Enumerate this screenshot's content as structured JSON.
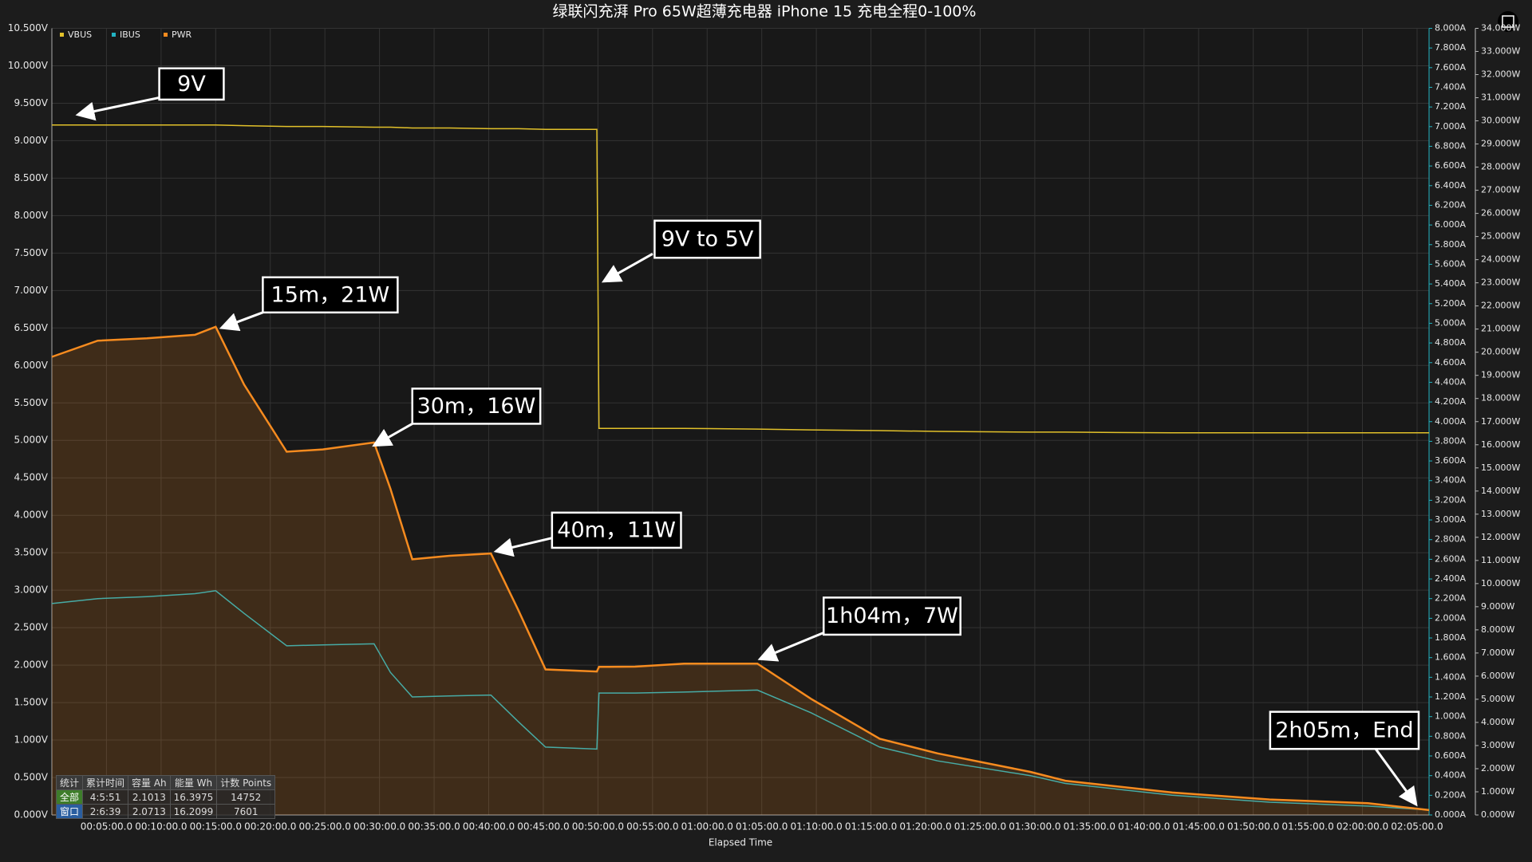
{
  "chart_data": {
    "type": "line",
    "title": "绿联闪充湃 Pro 65W超薄充电器 iPhone 15 充电全程0-100%",
    "x_label": "Elapsed Time",
    "x": [
      0,
      4.2,
      8.7,
      13.1,
      15.0,
      17.6,
      21.5,
      24.8,
      29.5,
      31.0,
      33.0,
      36.4,
      40.2,
      42.7,
      45.2,
      49.9,
      50.1,
      53.4,
      57.9,
      64.6,
      69.5,
      75.8,
      81.1,
      89.6,
      92.8,
      102.6,
      111.5,
      120.5,
      126.1
    ],
    "series": [
      {
        "name": "VBUS",
        "color": "#e2c12a",
        "axis": "y",
        "values": [
          9.21,
          9.21,
          9.21,
          9.21,
          9.21,
          9.2,
          9.19,
          9.19,
          9.18,
          9.18,
          9.17,
          9.17,
          9.16,
          9.16,
          9.15,
          9.15,
          5.16,
          5.16,
          5.16,
          5.15,
          5.14,
          5.13,
          5.12,
          5.11,
          5.11,
          5.1,
          5.1,
          5.1,
          5.1
        ]
      },
      {
        "name": "IBUS",
        "color": "#22b3c2",
        "axis": "y2",
        "values": [
          2.15,
          2.2,
          2.22,
          2.25,
          2.28,
          2.05,
          1.72,
          1.73,
          1.74,
          1.45,
          1.2,
          1.21,
          1.22,
          0.95,
          0.69,
          0.67,
          1.24,
          1.24,
          1.25,
          1.27,
          1.04,
          0.69,
          0.55,
          0.4,
          0.32,
          0.2,
          0.13,
          0.09,
          0.05
        ]
      },
      {
        "name": "PWR",
        "color": "#f68b1f",
        "axis": "y3",
        "values": [
          19.8,
          20.5,
          20.6,
          20.75,
          21.1,
          18.6,
          15.7,
          15.8,
          16.1,
          14.1,
          11.05,
          11.2,
          11.3,
          8.86,
          6.29,
          6.2,
          6.4,
          6.41,
          6.54,
          6.54,
          5.02,
          3.29,
          2.66,
          1.86,
          1.48,
          0.97,
          0.67,
          0.51,
          0.21
        ]
      }
    ],
    "xlim": [
      0,
      126.1
    ],
    "xticks": [
      {
        "value": 5,
        "label": "00:05:00.0"
      },
      {
        "value": 10,
        "label": "00:10:00.0"
      },
      {
        "value": 15,
        "label": "00:15:00.0"
      },
      {
        "value": 20,
        "label": "00:20:00.0"
      },
      {
        "value": 25,
        "label": "00:25:00.0"
      },
      {
        "value": 30,
        "label": "00:30:00.0"
      },
      {
        "value": 35,
        "label": "00:35:00.0"
      },
      {
        "value": 40,
        "label": "00:40:00.0"
      },
      {
        "value": 45,
        "label": "00:45:00.0"
      },
      {
        "value": 50,
        "label": "00:50:00.0"
      },
      {
        "value": 55,
        "label": "00:55:00.0"
      },
      {
        "value": 60,
        "label": "01:00:00.0"
      },
      {
        "value": 65,
        "label": "01:05:00.0"
      },
      {
        "value": 70,
        "label": "01:10:00.0"
      },
      {
        "value": 75,
        "label": "01:15:00.0"
      },
      {
        "value": 80,
        "label": "01:20:00.0"
      },
      {
        "value": 85,
        "label": "01:25:00.0"
      },
      {
        "value": 90,
        "label": "01:30:00.0"
      },
      {
        "value": 95,
        "label": "01:35:00.0"
      },
      {
        "value": 100,
        "label": "01:40:00.0"
      },
      {
        "value": 105,
        "label": "01:45:00.0"
      },
      {
        "value": 110,
        "label": "01:50:00.0"
      },
      {
        "value": 115,
        "label": "01:55:00.0"
      },
      {
        "value": 120,
        "label": "02:00:00.0"
      },
      {
        "value": 125,
        "label": "02:05:00.0"
      }
    ],
    "ylim": [
      0,
      10.5
    ],
    "yticks": [
      {
        "value": 0,
        "label": "0.000V"
      },
      {
        "value": 0.5,
        "label": "0.500V"
      },
      {
        "value": 1,
        "label": "1.000V"
      },
      {
        "value": 1.5,
        "label": "1.500V"
      },
      {
        "value": 2,
        "label": "2.000V"
      },
      {
        "value": 2.5,
        "label": "2.500V"
      },
      {
        "value": 3,
        "label": "3.000V"
      },
      {
        "value": 3.5,
        "label": "3.500V"
      },
      {
        "value": 4,
        "label": "4.000V"
      },
      {
        "value": 4.5,
        "label": "4.500V"
      },
      {
        "value": 5,
        "label": "5.000V"
      },
      {
        "value": 5.5,
        "label": "5.500V"
      },
      {
        "value": 6,
        "label": "6.000V"
      },
      {
        "value": 6.5,
        "label": "6.500V"
      },
      {
        "value": 7,
        "label": "7.000V"
      },
      {
        "value": 7.5,
        "label": "7.500V"
      },
      {
        "value": 8,
        "label": "8.000V"
      },
      {
        "value": 8.5,
        "label": "8.500V"
      },
      {
        "value": 9,
        "label": "9.000V"
      },
      {
        "value": 9.5,
        "label": "9.500V"
      },
      {
        "value": 10,
        "label": "10.000V"
      },
      {
        "value": 10.5,
        "label": "10.500V"
      }
    ],
    "y2lim": [
      0,
      8
    ],
    "y2ticks": [
      {
        "value": 0,
        "label": "0.000A"
      },
      {
        "value": 0.2,
        "label": "0.200A"
      },
      {
        "value": 0.4,
        "label": "0.400A"
      },
      {
        "value": 0.6,
        "label": "0.600A"
      },
      {
        "value": 0.8,
        "label": "0.800A"
      },
      {
        "value": 1,
        "label": "1.000A"
      },
      {
        "value": 1.2,
        "label": "1.200A"
      },
      {
        "value": 1.4,
        "label": "1.400A"
      },
      {
        "value": 1.6,
        "label": "1.600A"
      },
      {
        "value": 1.8,
        "label": "1.800A"
      },
      {
        "value": 2,
        "label": "2.000A"
      },
      {
        "value": 2.2,
        "label": "2.200A"
      },
      {
        "value": 2.4,
        "label": "2.400A"
      },
      {
        "value": 2.6,
        "label": "2.600A"
      },
      {
        "value": 2.8,
        "label": "2.800A"
      },
      {
        "value": 3,
        "label": "3.000A"
      },
      {
        "value": 3.2,
        "label": "3.200A"
      },
      {
        "value": 3.4,
        "label": "3.400A"
      },
      {
        "value": 3.6,
        "label": "3.600A"
      },
      {
        "value": 3.8,
        "label": "3.800A"
      },
      {
        "value": 4,
        "label": "4.000A"
      },
      {
        "value": 4.2,
        "label": "4.200A"
      },
      {
        "value": 4.4,
        "label": "4.400A"
      },
      {
        "value": 4.6,
        "label": "4.600A"
      },
      {
        "value": 4.8,
        "label": "4.800A"
      },
      {
        "value": 5,
        "label": "5.000A"
      },
      {
        "value": 5.2,
        "label": "5.200A"
      },
      {
        "value": 5.4,
        "label": "5.400A"
      },
      {
        "value": 5.6,
        "label": "5.600A"
      },
      {
        "value": 5.8,
        "label": "5.800A"
      },
      {
        "value": 6,
        "label": "6.000A"
      },
      {
        "value": 6.2,
        "label": "6.200A"
      },
      {
        "value": 6.4,
        "label": "6.400A"
      },
      {
        "value": 6.6,
        "label": "6.600A"
      },
      {
        "value": 6.8,
        "label": "6.800A"
      },
      {
        "value": 7,
        "label": "7.000A"
      },
      {
        "value": 7.2,
        "label": "7.200A"
      },
      {
        "value": 7.4,
        "label": "7.400A"
      },
      {
        "value": 7.6,
        "label": "7.600A"
      },
      {
        "value": 7.8,
        "label": "7.800A"
      },
      {
        "value": 8,
        "label": "8.000A"
      }
    ],
    "y3lim": [
      0,
      34
    ],
    "y3ticks": [
      {
        "value": 0,
        "label": "0.000W"
      },
      {
        "value": 1,
        "label": "1.000W"
      },
      {
        "value": 2,
        "label": "2.000W"
      },
      {
        "value": 3,
        "label": "3.000W"
      },
      {
        "value": 4,
        "label": "4.000W"
      },
      {
        "value": 5,
        "label": "5.000W"
      },
      {
        "value": 6,
        "label": "6.000W"
      },
      {
        "value": 7,
        "label": "7.000W"
      },
      {
        "value": 8,
        "label": "8.000W"
      },
      {
        "value": 9,
        "label": "9.000W"
      },
      {
        "value": 10,
        "label": "10.000W"
      },
      {
        "value": 11,
        "label": "11.000W"
      },
      {
        "value": 12,
        "label": "12.000W"
      },
      {
        "value": 13,
        "label": "13.000W"
      },
      {
        "value": 14,
        "label": "14.000W"
      },
      {
        "value": 15,
        "label": "15.000W"
      },
      {
        "value": 16,
        "label": "16.000W"
      },
      {
        "value": 17,
        "label": "17.000W"
      },
      {
        "value": 18,
        "label": "18.000W"
      },
      {
        "value": 19,
        "label": "19.000W"
      },
      {
        "value": 20,
        "label": "20.000W"
      },
      {
        "value": 21,
        "label": "21.000W"
      },
      {
        "value": 22,
        "label": "22.000W"
      },
      {
        "value": 23,
        "label": "23.000W"
      },
      {
        "value": 24,
        "label": "24.000W"
      },
      {
        "value": 25,
        "label": "25.000W"
      },
      {
        "value": 26,
        "label": "26.000W"
      },
      {
        "value": 27,
        "label": "27.000W"
      },
      {
        "value": 28,
        "label": "28.000W"
      },
      {
        "value": 29,
        "label": "29.000W"
      },
      {
        "value": 30,
        "label": "30.000W"
      },
      {
        "value": 31,
        "label": "31.000W"
      },
      {
        "value": 32,
        "label": "32.000W"
      },
      {
        "value": 33,
        "label": "33.000W"
      },
      {
        "value": 34,
        "label": "34.000W"
      }
    ],
    "grid": true,
    "legend": "top-left",
    "area_series": "PWR",
    "annotations": [
      "9V",
      "9V to 5V",
      "15m，21W",
      "30m，16W",
      "40m，11W",
      "1h04m，7W",
      "2h05m，End"
    ],
    "stats_table": {
      "header": [
        "统计",
        "累计时间",
        "容量 Ah",
        "能量 Wh",
        "计数 Points"
      ],
      "rows": [
        [
          "全部",
          "4:5:51",
          "2.1013",
          "16.3975",
          "14752"
        ],
        [
          "窗口",
          "2:6:39",
          "2.0713",
          "16.2099",
          "7601"
        ]
      ]
    }
  }
}
